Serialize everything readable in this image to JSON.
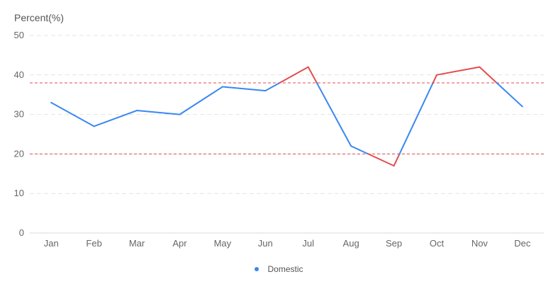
{
  "chart_data": {
    "type": "line",
    "ylabel": "Percent(%)",
    "categories": [
      "Jan",
      "Feb",
      "Mar",
      "Apr",
      "May",
      "Jun",
      "Jul",
      "Aug",
      "Sep",
      "Oct",
      "Nov",
      "Dec"
    ],
    "series": [
      {
        "name": "Domestic",
        "values": [
          33,
          27,
          31,
          30,
          37,
          36,
          42,
          22,
          17,
          40,
          42,
          32
        ]
      }
    ],
    "ylim": [
      0,
      50
    ],
    "yticks": [
      0,
      10,
      20,
      30,
      40,
      50
    ],
    "grid": true,
    "thresholds": [
      20,
      38
    ],
    "legend_position": "bottom",
    "colors": {
      "normal": "#3a87f2",
      "out_of_range": "#e34d4d",
      "threshold": "#e34d4d",
      "grid": "#e4e4e4",
      "axis": "#d9d9d9"
    }
  }
}
